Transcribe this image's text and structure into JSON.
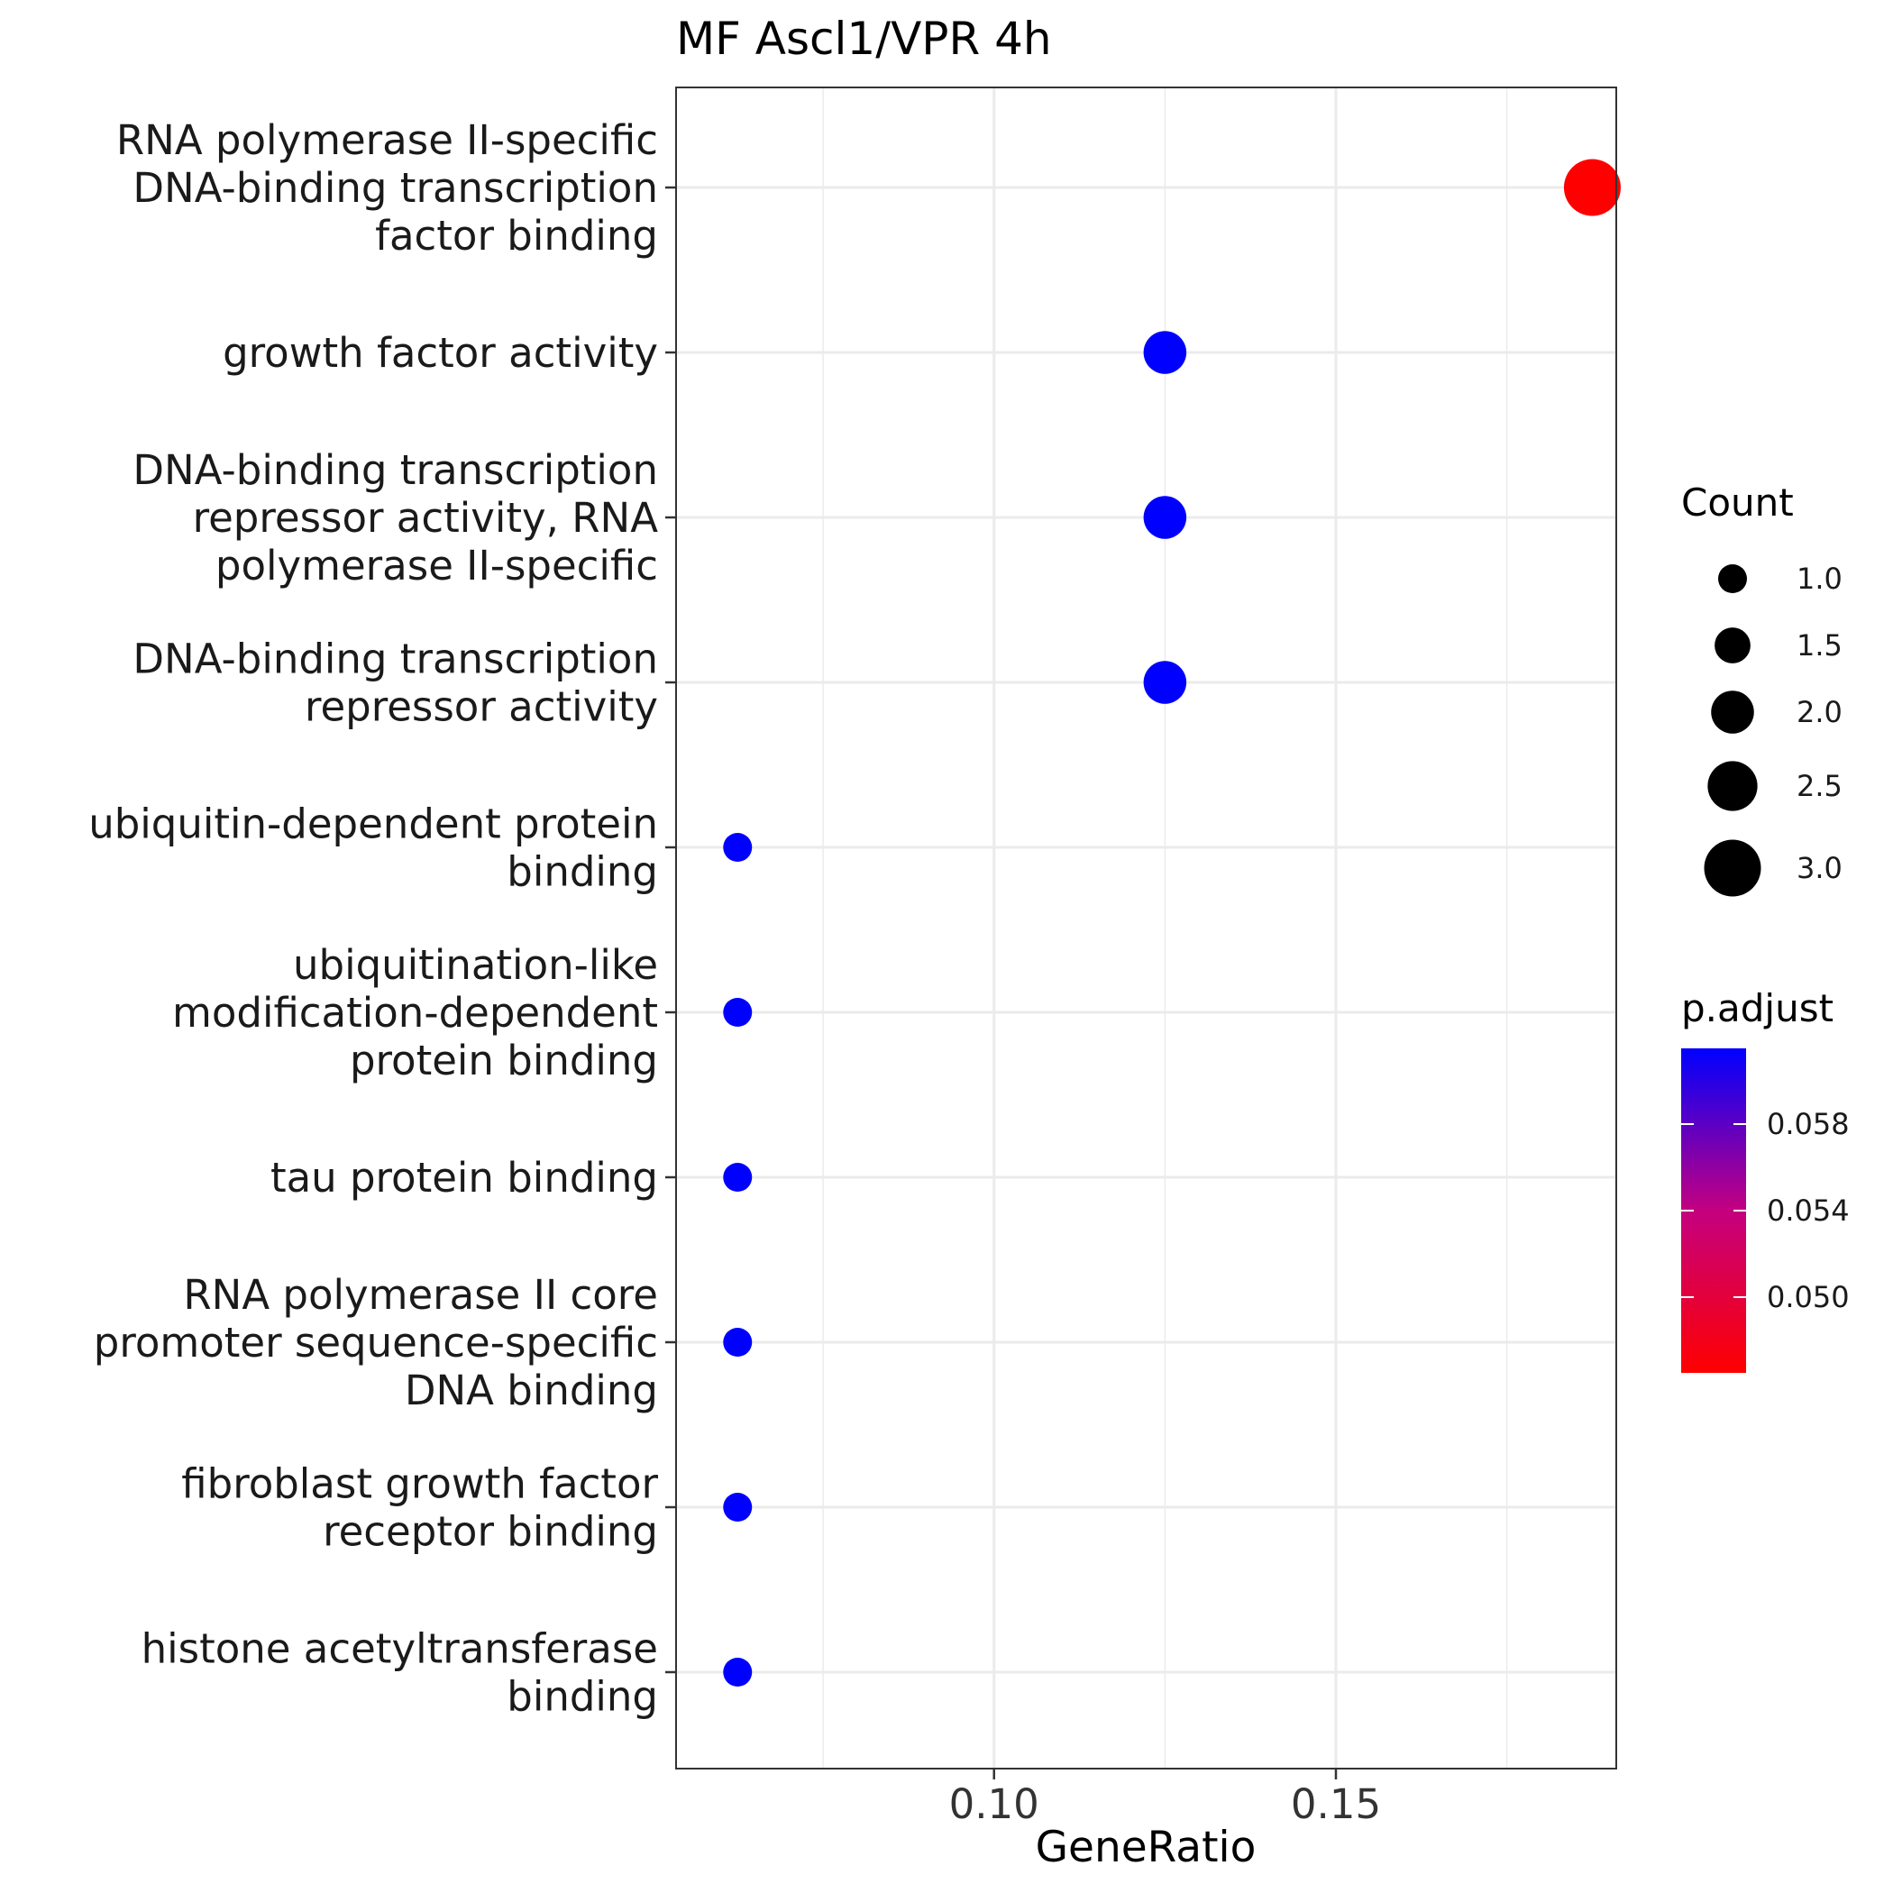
{
  "chart_data": {
    "type": "scatter",
    "title": "MF Ascl1/VPR 4h",
    "xlabel": "GeneRatio",
    "ylabel": "",
    "xlim": [
      0.0535,
      0.191
    ],
    "x_ticks": [
      0.1,
      0.15
    ],
    "x_tick_labels": [
      "0.10",
      "0.15"
    ],
    "x_minor_ticks": [
      0.075,
      0.125,
      0.175
    ],
    "grid": true,
    "categories": [
      [
        "RNA polymerase II-specific",
        "DNA-binding transcription",
        "factor binding"
      ],
      [
        "growth factor activity"
      ],
      [
        "DNA-binding transcription",
        "repressor activity, RNA",
        "polymerase II-specific"
      ],
      [
        "DNA-binding transcription",
        "repressor activity"
      ],
      [
        "ubiquitin-dependent protein",
        "binding"
      ],
      [
        "ubiquitination-like",
        "modification-dependent",
        "protein binding"
      ],
      [
        "tau protein binding"
      ],
      [
        "RNA polymerase II core",
        "promoter sequence-specific",
        "DNA binding"
      ],
      [
        "fibroblast growth factor",
        "receptor binding"
      ],
      [
        "histone acetyltransferase",
        "binding"
      ]
    ],
    "points": [
      {
        "gene_ratio": 0.1875,
        "count": 3,
        "p_adjust": 0.0465
      },
      {
        "gene_ratio": 0.125,
        "count": 2,
        "p_adjust": 0.0615
      },
      {
        "gene_ratio": 0.125,
        "count": 2,
        "p_adjust": 0.0615
      },
      {
        "gene_ratio": 0.125,
        "count": 2,
        "p_adjust": 0.0615
      },
      {
        "gene_ratio": 0.0625,
        "count": 1,
        "p_adjust": 0.0615
      },
      {
        "gene_ratio": 0.0625,
        "count": 1,
        "p_adjust": 0.0615
      },
      {
        "gene_ratio": 0.0625,
        "count": 1,
        "p_adjust": 0.0615
      },
      {
        "gene_ratio": 0.0625,
        "count": 1,
        "p_adjust": 0.0615
      },
      {
        "gene_ratio": 0.0625,
        "count": 1,
        "p_adjust": 0.0615
      },
      {
        "gene_ratio": 0.0625,
        "count": 1,
        "p_adjust": 0.0615
      }
    ],
    "size_legend": {
      "title": "Count",
      "values": [
        1.0,
        1.5,
        2.0,
        2.5,
        3.0
      ],
      "labels": [
        "1.0",
        "1.5",
        "2.0",
        "2.5",
        "3.0"
      ]
    },
    "color_legend": {
      "title": "p.adjust",
      "range": [
        0.0465,
        0.0615
      ],
      "low_color": "#ff0000",
      "high_color": "#0000ff",
      "ticks": [
        0.058,
        0.054,
        0.05
      ],
      "tick_labels": [
        "0.058",
        "0.054",
        "0.050"
      ]
    }
  }
}
